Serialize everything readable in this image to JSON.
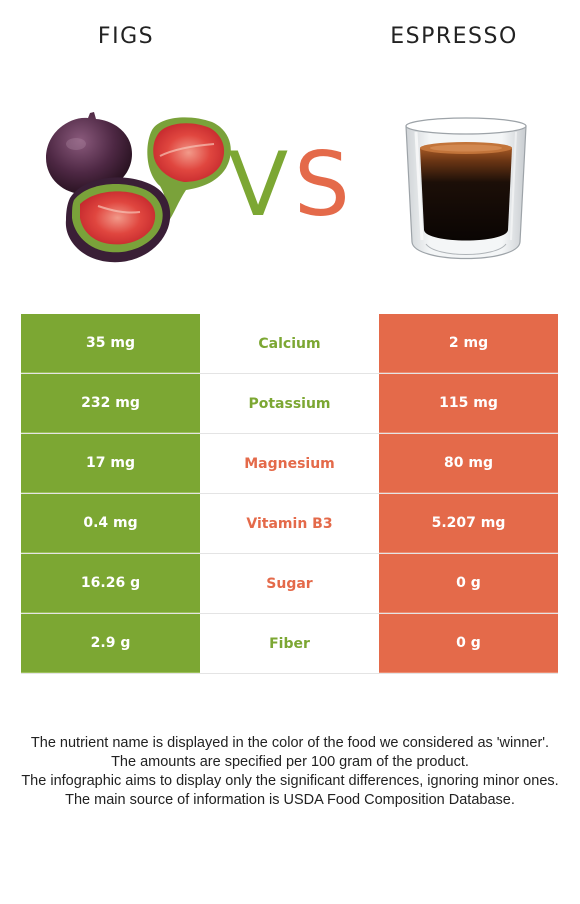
{
  "header": {
    "left_food": "FIGS",
    "right_food": "ESPRESSO",
    "vs_v": "V",
    "vs_s": "S"
  },
  "colors": {
    "left_winner": "#7ca733",
    "right_winner": "#e46a4a"
  },
  "images": {
    "left": "figs-image",
    "right": "espresso-cup-image"
  },
  "rows": [
    {
      "left_value": "35 mg",
      "nutrient": "Calcium",
      "right_value": "2 mg",
      "winner": "left"
    },
    {
      "left_value": "232 mg",
      "nutrient": "Potassium",
      "right_value": "115 mg",
      "winner": "left"
    },
    {
      "left_value": "17 mg",
      "nutrient": "Magnesium",
      "right_value": "80 mg",
      "winner": "right"
    },
    {
      "left_value": "0.4 mg",
      "nutrient": "Vitamin B3",
      "right_value": "5.207 mg",
      "winner": "right"
    },
    {
      "left_value": "16.26 g",
      "nutrient": "Sugar",
      "right_value": "0 g",
      "winner": "right"
    },
    {
      "left_value": "2.9 g",
      "nutrient": "Fiber",
      "right_value": "0 g",
      "winner": "left"
    }
  ],
  "notes": [
    "The nutrient name is displayed in the color of the food we considered as 'winner'.",
    "The amounts are specified per 100 gram of the product.",
    "The infographic aims to display only the significant differences, ignoring minor ones.",
    "The main source of information is USDA Food Composition Database."
  ]
}
